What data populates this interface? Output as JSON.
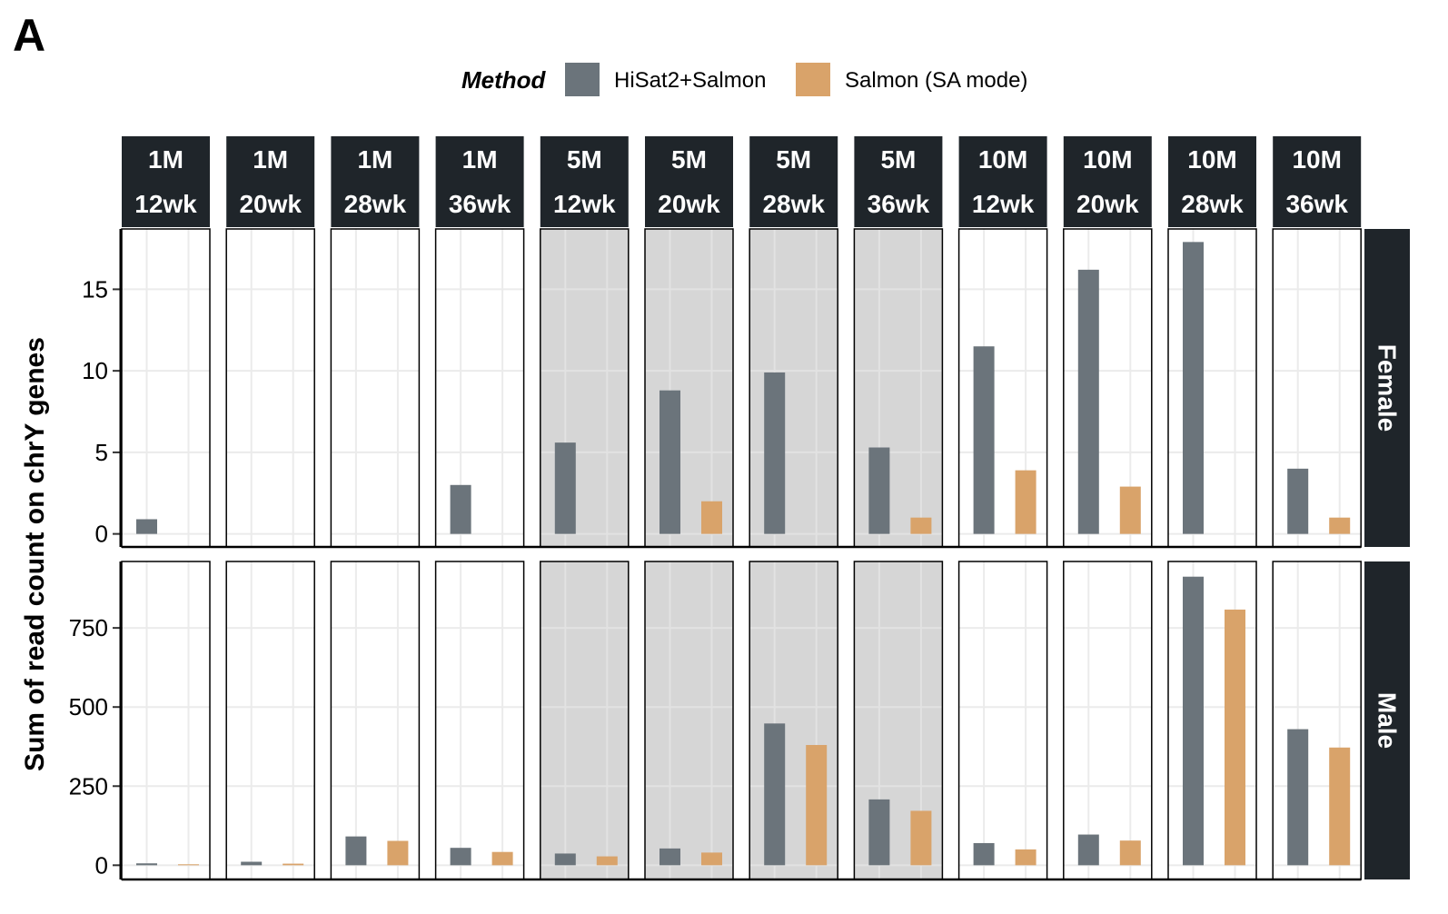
{
  "panel_letter": "A",
  "colors": {
    "hisat": "#6b747b",
    "salmon": "#d9a36a",
    "strip": "#1f252a",
    "highlight": "#d6d6d6",
    "grid": "#ebebeb"
  },
  "chart_data": {
    "type": "bar",
    "ylabel": "Sum of read count on chrY genes",
    "legend": {
      "title": "Method",
      "entries": [
        "HiSat2+Salmon",
        "Salmon (SA mode)"
      ],
      "position": "top"
    },
    "columns": [
      {
        "line1": "1M",
        "line2": "12wk",
        "highlighted": false
      },
      {
        "line1": "1M",
        "line2": "20wk",
        "highlighted": false
      },
      {
        "line1": "1M",
        "line2": "28wk",
        "highlighted": false
      },
      {
        "line1": "1M",
        "line2": "36wk",
        "highlighted": false
      },
      {
        "line1": "5M",
        "line2": "12wk",
        "highlighted": true
      },
      {
        "line1": "5M",
        "line2": "20wk",
        "highlighted": true
      },
      {
        "line1": "5M",
        "line2": "28wk",
        "highlighted": true
      },
      {
        "line1": "5M",
        "line2": "36wk",
        "highlighted": true
      },
      {
        "line1": "10M",
        "line2": "12wk",
        "highlighted": false
      },
      {
        "line1": "10M",
        "line2": "20wk",
        "highlighted": false
      },
      {
        "line1": "10M",
        "line2": "28wk",
        "highlighted": false
      },
      {
        "line1": "10M",
        "line2": "36wk",
        "highlighted": false
      }
    ],
    "rows": [
      {
        "label": "Female",
        "ylim": [
          -0.8,
          18.7
        ],
        "yticks": [
          0,
          5,
          10,
          15
        ],
        "series": [
          {
            "name": "HiSat2+Salmon",
            "values": [
              0.9,
              0,
              0,
              3.0,
              5.6,
              8.8,
              9.9,
              5.3,
              11.5,
              16.2,
              17.9,
              4.0
            ]
          },
          {
            "name": "Salmon (SA mode)",
            "values": [
              0,
              0,
              0,
              0,
              0,
              2.0,
              0,
              1.0,
              3.9,
              2.9,
              0,
              1.0
            ]
          }
        ]
      },
      {
        "label": "Male",
        "ylim": [
          -45,
          960
        ],
        "yticks": [
          0,
          250,
          500,
          750
        ],
        "series": [
          {
            "name": "HiSat2+Salmon",
            "values": [
              6,
              11,
              91,
              55,
              37,
              53,
              448,
              208,
              70,
              97,
              912,
              430
            ]
          },
          {
            "name": "Salmon (SA mode)",
            "values": [
              3,
              5,
              77,
              42,
              28,
              40,
              380,
              172,
              50,
              78,
              808,
              372
            ]
          }
        ]
      }
    ]
  }
}
